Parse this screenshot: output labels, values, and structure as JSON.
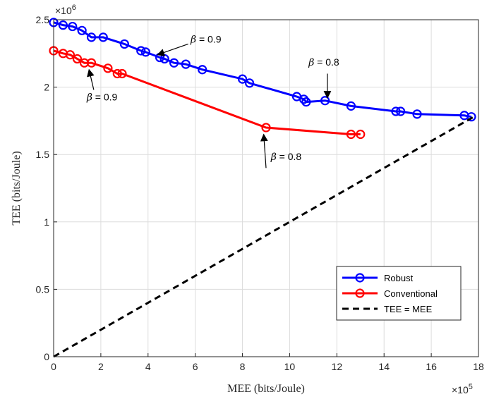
{
  "chart_data": {
    "type": "line",
    "xlabel": "MEE (bits/Joule)",
    "ylabel": "TEE (bits/Joule)",
    "x_exponent_label": "×10^5",
    "y_exponent_label": "×10^6",
    "x_scale": 100000,
    "y_scale": 1000000,
    "xlim": [
      0,
      1800000
    ],
    "ylim": [
      0,
      2500000
    ],
    "xticks": [
      0,
      200000,
      400000,
      600000,
      800000,
      1000000,
      1200000,
      1400000,
      1600000,
      1800000
    ],
    "yticks": [
      0,
      500000,
      1000000,
      1500000,
      2000000,
      2500000
    ],
    "xtick_labels": [
      "0",
      "2",
      "4",
      "6",
      "8",
      "10",
      "12",
      "14",
      "16",
      "18"
    ],
    "ytick_labels": [
      "0",
      "0.5",
      "1",
      "1.5",
      "2",
      "2.5"
    ],
    "grid": true,
    "legend_position": "bottom-right",
    "series": [
      {
        "name": "Robust",
        "color": "#0000ff",
        "style": "solid",
        "marker": "circle",
        "x": [
          0,
          40000,
          80000,
          120000,
          160000,
          210000,
          300000,
          370000,
          390000,
          450000,
          470000,
          510000,
          560000,
          630000,
          800000,
          830000,
          1030000,
          1060000,
          1070000,
          1150000,
          1260000,
          1450000,
          1470000,
          1540000,
          1740000,
          1770000
        ],
        "y": [
          2480000,
          2460000,
          2450000,
          2420000,
          2370000,
          2370000,
          2320000,
          2270000,
          2260000,
          2220000,
          2210000,
          2180000,
          2170000,
          2130000,
          2060000,
          2030000,
          1930000,
          1910000,
          1890000,
          1900000,
          1860000,
          1820000,
          1820000,
          1800000,
          1790000,
          1780000
        ]
      },
      {
        "name": "Conventional",
        "color": "#ff0000",
        "style": "solid",
        "marker": "circle",
        "x": [
          0,
          40000,
          70000,
          100000,
          130000,
          160000,
          230000,
          270000,
          290000,
          900000,
          1260000,
          1300000
        ],
        "y": [
          2270000,
          2250000,
          2240000,
          2210000,
          2180000,
          2180000,
          2140000,
          2100000,
          2100000,
          1700000,
          1650000,
          1650000
        ]
      },
      {
        "name": "TEE = MEE",
        "color": "#000000",
        "style": "dashed",
        "marker": "none",
        "x": [
          0,
          1780000
        ],
        "y": [
          0,
          1780000
        ]
      }
    ],
    "annotations": [
      {
        "text": "β = 0.9",
        "arrow_from": [
          570000,
          2320000
        ],
        "arrow_to": [
          440000,
          2240000
        ],
        "text_at": [
          580000,
          2330000
        ]
      },
      {
        "text": "β = 0.8",
        "arrow_from": [
          1160000,
          2100000
        ],
        "arrow_to": [
          1160000,
          1920000
        ],
        "text_at": [
          1080000,
          2160000
        ]
      },
      {
        "text": "β = 0.9",
        "arrow_from": [
          170000,
          1980000
        ],
        "arrow_to": [
          150000,
          2130000
        ],
        "text_at": [
          140000,
          1900000
        ]
      },
      {
        "text": "β = 0.8",
        "arrow_from": [
          900000,
          1400000
        ],
        "arrow_to": [
          890000,
          1650000
        ],
        "text_at": [
          920000,
          1460000
        ]
      }
    ]
  }
}
